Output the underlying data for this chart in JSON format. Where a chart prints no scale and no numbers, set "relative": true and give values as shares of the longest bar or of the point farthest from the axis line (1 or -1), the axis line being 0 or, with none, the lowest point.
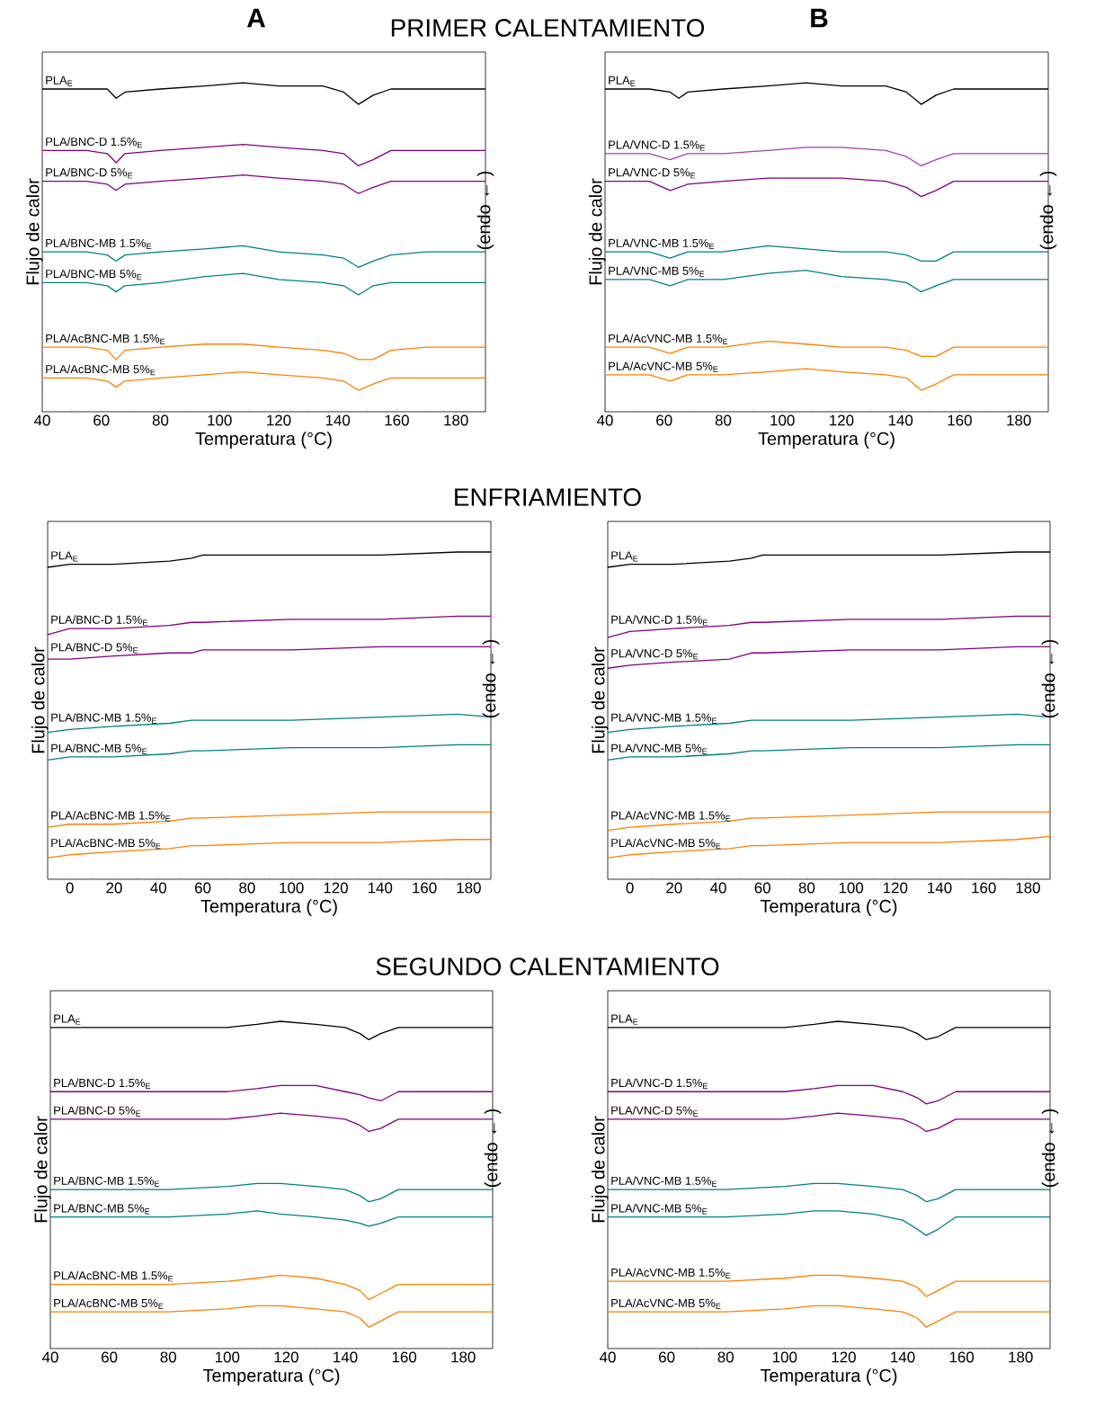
{
  "chart_data": [
    {
      "type": "line",
      "relative": true,
      "title": "A",
      "subtitle": "PRIMER CALENTAMIENTO",
      "xlabel": "Temperatura (°C)",
      "ylabel": "Flujo de calor",
      "y2label": "(endo ← )",
      "xlim": [
        40,
        190
      ],
      "xticks": [
        40,
        60,
        80,
        100,
        120,
        140,
        160,
        180
      ],
      "x": [
        40,
        55,
        62,
        65,
        68,
        80,
        95,
        108,
        120,
        135,
        142,
        147,
        152,
        158,
        170,
        190
      ],
      "series": [
        {
          "name": "PLA$_{E}$",
          "color": "#000000",
          "values": [
            0.98,
            0.98,
            0.98,
            0.95,
            0.97,
            0.98,
            0.99,
            1.0,
            0.99,
            0.99,
            0.97,
            0.93,
            0.96,
            0.98,
            0.98,
            0.98
          ]
        },
        {
          "name": "PLA/BNC-D 1.5%$_{E}$",
          "color": "#800080",
          "values": [
            0.78,
            0.78,
            0.77,
            0.74,
            0.77,
            0.78,
            0.79,
            0.8,
            0.79,
            0.78,
            0.77,
            0.73,
            0.75,
            0.78,
            0.78,
            0.78
          ]
        },
        {
          "name": "PLA/BNC-D 5%$_{E}$",
          "color": "#800080",
          "values": [
            0.68,
            0.68,
            0.67,
            0.65,
            0.67,
            0.68,
            0.69,
            0.7,
            0.69,
            0.68,
            0.67,
            0.64,
            0.66,
            0.68,
            0.68,
            0.68
          ]
        },
        {
          "name": "PLA/BNC-MB 1.5%$_{E}$",
          "color": "#008080",
          "values": [
            0.45,
            0.45,
            0.44,
            0.42,
            0.44,
            0.45,
            0.46,
            0.47,
            0.45,
            0.44,
            0.43,
            0.4,
            0.42,
            0.44,
            0.45,
            0.45
          ]
        },
        {
          "name": "PLA/BNC-MB 5%$_{E}$",
          "color": "#008080",
          "values": [
            0.35,
            0.35,
            0.34,
            0.32,
            0.34,
            0.35,
            0.37,
            0.38,
            0.36,
            0.35,
            0.34,
            0.31,
            0.34,
            0.35,
            0.35,
            0.35
          ]
        },
        {
          "name": "PLA/AcBNC-MB 1.5%$_{E}$",
          "color": "#ff8000",
          "values": [
            0.14,
            0.14,
            0.13,
            0.1,
            0.13,
            0.14,
            0.15,
            0.15,
            0.14,
            0.13,
            0.12,
            0.1,
            0.1,
            0.13,
            0.14,
            0.14
          ]
        },
        {
          "name": "PLA/AcBNC-MB 5%$_{E}$",
          "color": "#ff8000",
          "values": [
            0.04,
            0.04,
            0.03,
            0.01,
            0.03,
            0.04,
            0.05,
            0.06,
            0.05,
            0.04,
            0.03,
            0.0,
            0.02,
            0.04,
            0.04,
            0.04
          ]
        }
      ]
    },
    {
      "type": "line",
      "relative": true,
      "title": "B",
      "xlabel": "Temperatura (°C)",
      "ylabel": "Flujo de calor",
      "y2label": "(endo ← )",
      "xlim": [
        40,
        190
      ],
      "xticks": [
        40,
        60,
        80,
        100,
        120,
        140,
        160,
        180
      ],
      "x": [
        40,
        55,
        62,
        65,
        68,
        80,
        95,
        108,
        120,
        135,
        142,
        147,
        152,
        158,
        170,
        190
      ],
      "series": [
        {
          "name": "PLA$_{E}$",
          "color": "#000000",
          "values": [
            0.98,
            0.98,
            0.97,
            0.95,
            0.97,
            0.98,
            0.99,
            1.0,
            0.99,
            0.99,
            0.97,
            0.93,
            0.96,
            0.98,
            0.98,
            0.98
          ]
        },
        {
          "name": "PLA/VNC-D 1.5%$_{E}$",
          "color": "#a040b0",
          "values": [
            0.77,
            0.77,
            0.75,
            0.76,
            0.77,
            0.77,
            0.78,
            0.79,
            0.79,
            0.78,
            0.76,
            0.73,
            0.75,
            0.77,
            0.77,
            0.77
          ]
        },
        {
          "name": "PLA/VNC-D 5%$_{E}$",
          "color": "#800080",
          "values": [
            0.68,
            0.68,
            0.65,
            0.66,
            0.67,
            0.68,
            0.69,
            0.69,
            0.69,
            0.68,
            0.66,
            0.63,
            0.65,
            0.68,
            0.68,
            0.68
          ]
        },
        {
          "name": "PLA/VNC-MB 1.5%$_{E}$",
          "color": "#008080",
          "values": [
            0.45,
            0.45,
            0.43,
            0.44,
            0.45,
            0.45,
            0.47,
            0.46,
            0.45,
            0.45,
            0.44,
            0.42,
            0.42,
            0.45,
            0.45,
            0.45
          ]
        },
        {
          "name": "PLA/VNC-MB 5%$_{E}$",
          "color": "#008080",
          "values": [
            0.36,
            0.36,
            0.34,
            0.35,
            0.36,
            0.36,
            0.38,
            0.39,
            0.37,
            0.36,
            0.35,
            0.32,
            0.34,
            0.36,
            0.36,
            0.36
          ]
        },
        {
          "name": "PLA/AcVNC-MB 1.5%$_{E}$",
          "color": "#ff8000",
          "values": [
            0.14,
            0.14,
            0.12,
            0.13,
            0.14,
            0.14,
            0.16,
            0.15,
            0.14,
            0.14,
            0.13,
            0.11,
            0.11,
            0.14,
            0.14,
            0.14
          ]
        },
        {
          "name": "PLA/AcVNC-MB 5%$_{E}$",
          "color": "#ff8000",
          "values": [
            0.05,
            0.05,
            0.03,
            0.04,
            0.05,
            0.05,
            0.06,
            0.07,
            0.06,
            0.05,
            0.04,
            0.0,
            0.02,
            0.05,
            0.05,
            0.05
          ]
        }
      ]
    },
    {
      "type": "line",
      "relative": true,
      "subtitle": "ENFRIAMIENTO",
      "xlabel": "Temperatura (°C)",
      "ylabel": "Flujo de calor",
      "y2label": "(endo ← )",
      "xlim": [
        -10,
        190
      ],
      "xticks": [
        0,
        20,
        40,
        60,
        80,
        100,
        120,
        140,
        160,
        180
      ],
      "x": [
        -10,
        0,
        20,
        45,
        55,
        60,
        100,
        140,
        175,
        190
      ],
      "series": [
        {
          "name": "PLA$_{E}$",
          "color": "#000000",
          "values": [
            0.95,
            0.96,
            0.96,
            0.97,
            0.98,
            0.99,
            0.99,
            0.99,
            1.0,
            1.0
          ]
        },
        {
          "name": "PLA/BNC-D 1.5%$_{E}$",
          "color": "#800080",
          "values": [
            0.73,
            0.75,
            0.75,
            0.76,
            0.77,
            0.77,
            0.78,
            0.78,
            0.79,
            0.79
          ]
        },
        {
          "name": "PLA/BNC-D 5%$_{E}$",
          "color": "#800080",
          "values": [
            0.65,
            0.65,
            0.66,
            0.67,
            0.67,
            0.68,
            0.68,
            0.69,
            0.69,
            0.69
          ]
        },
        {
          "name": "PLA/BNC-MB 1.5%$_{E}$",
          "color": "#008080",
          "values": [
            0.41,
            0.42,
            0.43,
            0.44,
            0.45,
            0.45,
            0.45,
            0.46,
            0.47,
            0.46
          ]
        },
        {
          "name": "PLA/BNC-MB 5%$_{E}$",
          "color": "#008080",
          "values": [
            0.32,
            0.33,
            0.33,
            0.34,
            0.35,
            0.35,
            0.36,
            0.36,
            0.37,
            0.37
          ]
        },
        {
          "name": "PLA/AcBNC-MB 1.5%$_{E}$",
          "color": "#ff8000",
          "values": [
            0.1,
            0.11,
            0.11,
            0.12,
            0.13,
            0.13,
            0.14,
            0.15,
            0.15,
            0.15
          ]
        },
        {
          "name": "PLA/AcBNC-MB 5%$_{E}$",
          "color": "#ff8000",
          "values": [
            0.0,
            0.01,
            0.02,
            0.03,
            0.04,
            0.04,
            0.05,
            0.05,
            0.06,
            0.06
          ]
        }
      ]
    },
    {
      "type": "line",
      "relative": true,
      "xlabel": "Temperatura (°C)",
      "ylabel": "Flujo de calor",
      "y2label": "(endo ← )",
      "xlim": [
        -10,
        190
      ],
      "xticks": [
        0,
        20,
        40,
        60,
        80,
        100,
        120,
        140,
        160,
        180
      ],
      "x": [
        -10,
        0,
        20,
        45,
        55,
        60,
        100,
        140,
        175,
        190
      ],
      "series": [
        {
          "name": "PLA$_{E}$",
          "color": "#000000",
          "values": [
            0.95,
            0.96,
            0.96,
            0.97,
            0.98,
            0.99,
            0.99,
            0.99,
            1.0,
            1.0
          ]
        },
        {
          "name": "PLA/VNC-D 1.5%$_{E}$",
          "color": "#800080",
          "values": [
            0.72,
            0.74,
            0.75,
            0.76,
            0.77,
            0.77,
            0.78,
            0.78,
            0.79,
            0.79
          ]
        },
        {
          "name": "PLA/VNC-D 5%$_{E}$",
          "color": "#800080",
          "values": [
            0.62,
            0.63,
            0.64,
            0.65,
            0.67,
            0.67,
            0.68,
            0.68,
            0.69,
            0.69
          ]
        },
        {
          "name": "PLA/VNC-MB 1.5%$_{E}$",
          "color": "#008080",
          "values": [
            0.41,
            0.42,
            0.43,
            0.44,
            0.45,
            0.45,
            0.45,
            0.46,
            0.47,
            0.46
          ]
        },
        {
          "name": "PLA/VNC-MB 5%$_{E}$",
          "color": "#008080",
          "values": [
            0.32,
            0.33,
            0.33,
            0.34,
            0.35,
            0.35,
            0.36,
            0.36,
            0.37,
            0.37
          ]
        },
        {
          "name": "PLA/AcVNC-MB 1.5%$_{E}$",
          "color": "#ff8000",
          "values": [
            0.09,
            0.1,
            0.11,
            0.12,
            0.13,
            0.13,
            0.14,
            0.15,
            0.15,
            0.15
          ]
        },
        {
          "name": "PLA/AcVNC-MB 5%$_{E}$",
          "color": "#ff8000",
          "values": [
            0.0,
            0.01,
            0.02,
            0.03,
            0.04,
            0.04,
            0.05,
            0.05,
            0.06,
            0.07
          ]
        }
      ]
    },
    {
      "type": "line",
      "relative": true,
      "subtitle": "SEGUNDO CALENTAMIENTO",
      "xlabel": "Temperatura (°C)",
      "ylabel": "Flujo de calor",
      "y2label": "(endo ← )",
      "xlim": [
        40,
        190
      ],
      "xticks": [
        40,
        60,
        80,
        100,
        120,
        140,
        160,
        180
      ],
      "x": [
        40,
        55,
        62,
        65,
        80,
        100,
        110,
        118,
        130,
        140,
        145,
        148,
        152,
        158,
        170,
        190
      ],
      "series": [
        {
          "name": "PLA$_{E}$",
          "color": "#000000",
          "values": [
            0.98,
            0.98,
            0.98,
            0.98,
            0.98,
            0.98,
            0.99,
            1.0,
            0.99,
            0.98,
            0.96,
            0.94,
            0.96,
            0.98,
            0.98,
            0.98
          ]
        },
        {
          "name": "PLA/BNC-D 1.5%$_{E}$",
          "color": "#800080",
          "values": [
            0.77,
            0.77,
            0.77,
            0.77,
            0.77,
            0.77,
            0.78,
            0.79,
            0.79,
            0.77,
            0.76,
            0.75,
            0.74,
            0.77,
            0.77,
            0.77
          ]
        },
        {
          "name": "PLA/BNC-D 5%$_{E}$",
          "color": "#800080",
          "values": [
            0.68,
            0.68,
            0.68,
            0.68,
            0.68,
            0.68,
            0.69,
            0.7,
            0.69,
            0.68,
            0.66,
            0.64,
            0.65,
            0.68,
            0.68,
            0.68
          ]
        },
        {
          "name": "PLA/BNC-MB 1.5%$_{E}$",
          "color": "#008080",
          "values": [
            0.45,
            0.45,
            0.45,
            0.45,
            0.45,
            0.46,
            0.47,
            0.47,
            0.46,
            0.45,
            0.43,
            0.41,
            0.42,
            0.45,
            0.45,
            0.45
          ]
        },
        {
          "name": "PLA/BNC-MB 5%$_{E}$",
          "color": "#008080",
          "values": [
            0.36,
            0.36,
            0.36,
            0.36,
            0.36,
            0.37,
            0.38,
            0.37,
            0.36,
            0.35,
            0.34,
            0.33,
            0.34,
            0.36,
            0.36,
            0.36
          ]
        },
        {
          "name": "PLA/AcBNC-MB 1.5%$_{E}$",
          "color": "#ff8000",
          "values": [
            0.14,
            0.14,
            0.14,
            0.14,
            0.14,
            0.15,
            0.16,
            0.17,
            0.16,
            0.14,
            0.12,
            0.09,
            0.11,
            0.14,
            0.14,
            0.14
          ]
        },
        {
          "name": "PLA/AcBNC-MB 5%$_{E}$",
          "color": "#ff8000",
          "values": [
            0.05,
            0.05,
            0.05,
            0.05,
            0.05,
            0.06,
            0.07,
            0.07,
            0.06,
            0.05,
            0.03,
            0.0,
            0.02,
            0.05,
            0.05,
            0.05
          ]
        }
      ]
    },
    {
      "type": "line",
      "relative": true,
      "xlabel": "Temperatura (°C)",
      "ylabel": "Flujo de calor",
      "y2label": "(endo ← )",
      "xlim": [
        40,
        190
      ],
      "xticks": [
        40,
        60,
        80,
        100,
        120,
        140,
        160,
        180
      ],
      "x": [
        40,
        55,
        62,
        65,
        80,
        100,
        110,
        118,
        130,
        140,
        145,
        148,
        152,
        158,
        170,
        190
      ],
      "series": [
        {
          "name": "PLA$_{E}$",
          "color": "#000000",
          "values": [
            0.98,
            0.98,
            0.98,
            0.98,
            0.98,
            0.98,
            0.99,
            1.0,
            0.99,
            0.98,
            0.96,
            0.94,
            0.95,
            0.98,
            0.98,
            0.98
          ]
        },
        {
          "name": "PLA/VNC-D 1.5%$_{E}$",
          "color": "#800080",
          "values": [
            0.77,
            0.77,
            0.77,
            0.77,
            0.77,
            0.77,
            0.78,
            0.79,
            0.79,
            0.77,
            0.75,
            0.73,
            0.74,
            0.77,
            0.77,
            0.77
          ]
        },
        {
          "name": "PLA/VNC-D 5%$_{E}$",
          "color": "#800080",
          "values": [
            0.68,
            0.68,
            0.68,
            0.68,
            0.68,
            0.68,
            0.69,
            0.7,
            0.69,
            0.68,
            0.66,
            0.64,
            0.65,
            0.68,
            0.68,
            0.68
          ]
        },
        {
          "name": "PLA/VNC-MB 1.5%$_{E}$",
          "color": "#008080",
          "values": [
            0.45,
            0.45,
            0.45,
            0.45,
            0.45,
            0.46,
            0.47,
            0.47,
            0.46,
            0.45,
            0.43,
            0.41,
            0.42,
            0.45,
            0.45,
            0.45
          ]
        },
        {
          "name": "PLA/VNC-MB 5%$_{E}$",
          "color": "#008080",
          "values": [
            0.36,
            0.36,
            0.36,
            0.36,
            0.36,
            0.37,
            0.38,
            0.38,
            0.37,
            0.35,
            0.32,
            0.3,
            0.32,
            0.36,
            0.36,
            0.36
          ]
        },
        {
          "name": "PLA/AcVNC-MB 1.5%$_{E}$",
          "color": "#ff8000",
          "values": [
            0.15,
            0.15,
            0.15,
            0.15,
            0.15,
            0.16,
            0.17,
            0.17,
            0.16,
            0.15,
            0.13,
            0.1,
            0.12,
            0.15,
            0.15,
            0.15
          ]
        },
        {
          "name": "PLA/AcVNC-MB 5%$_{E}$",
          "color": "#ff8000",
          "values": [
            0.05,
            0.05,
            0.05,
            0.05,
            0.05,
            0.06,
            0.07,
            0.07,
            0.06,
            0.05,
            0.03,
            0.0,
            0.02,
            0.05,
            0.05,
            0.05
          ]
        }
      ]
    }
  ]
}
